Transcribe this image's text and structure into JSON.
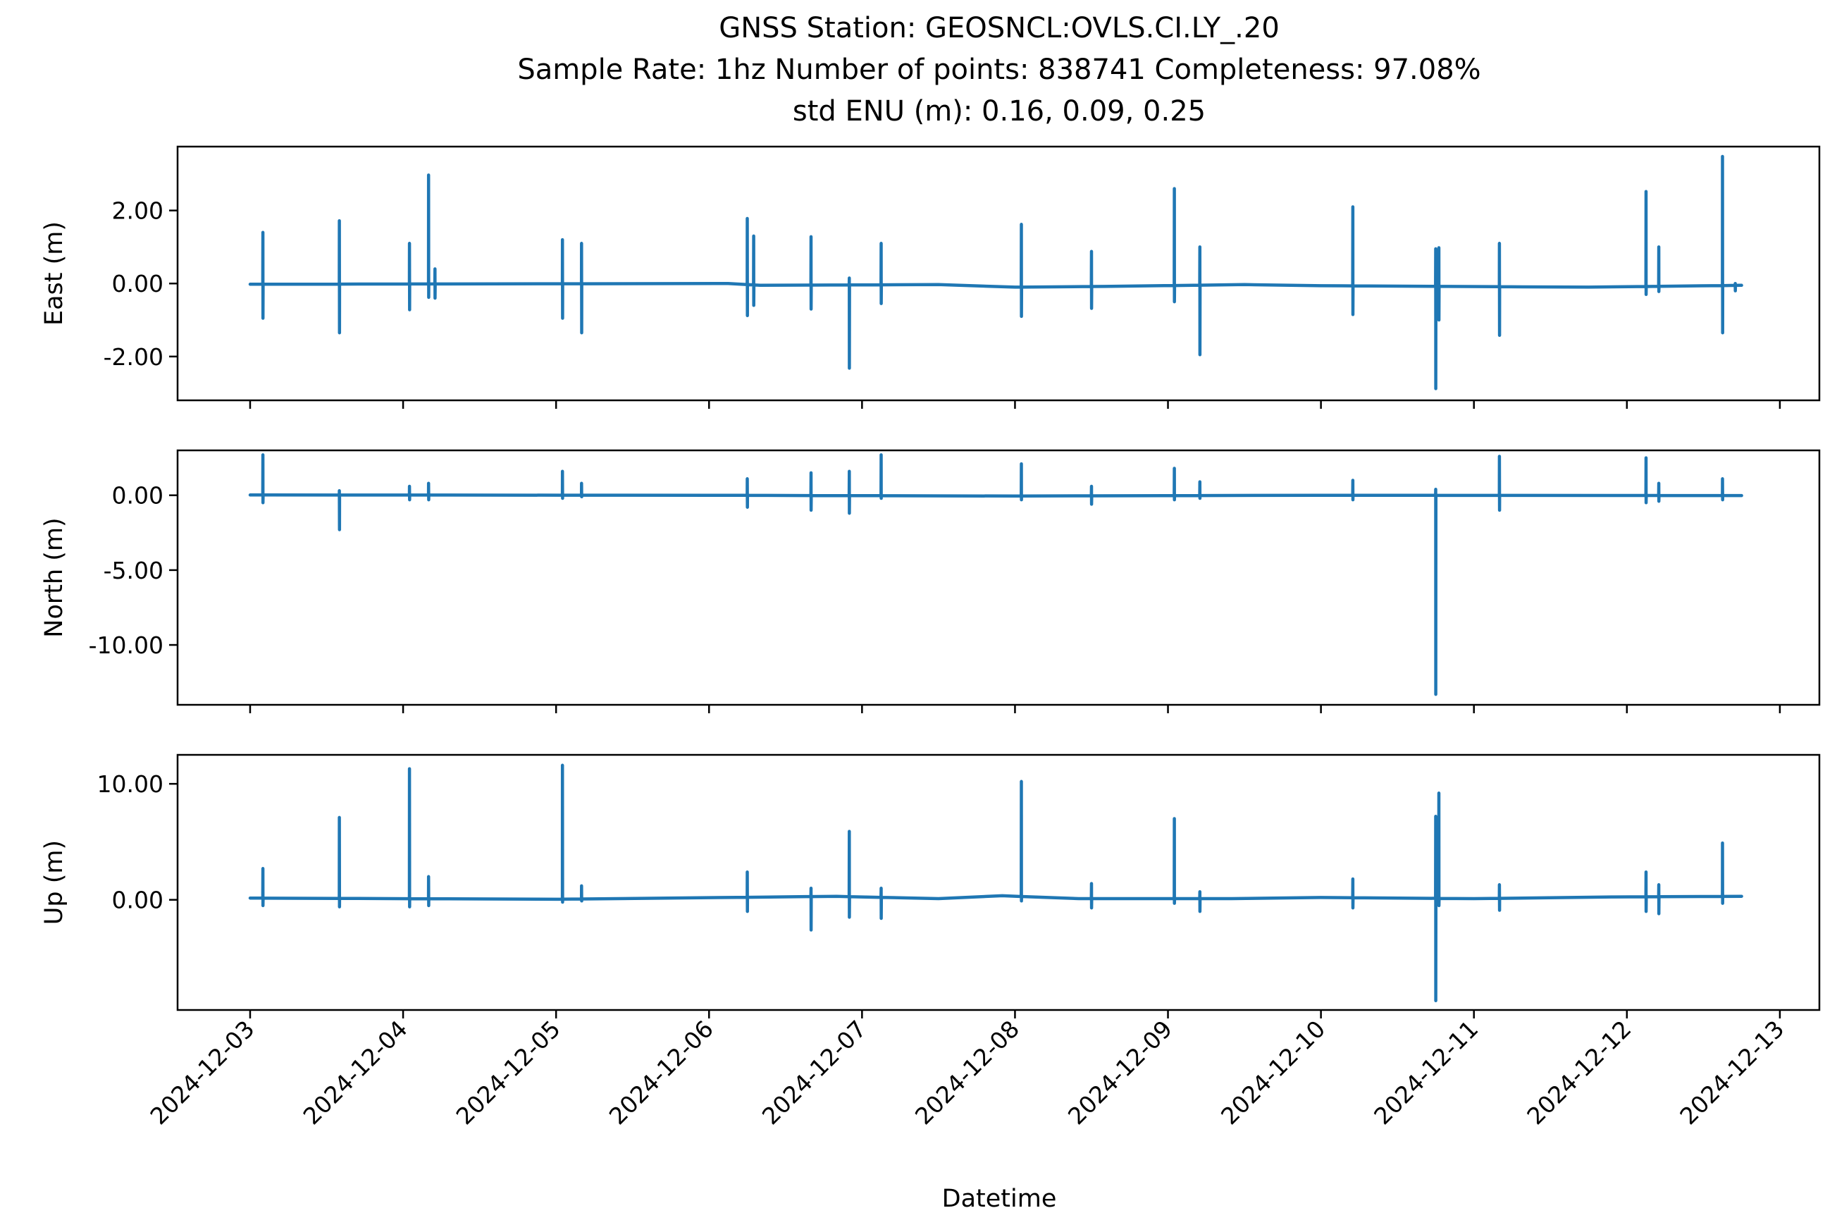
{
  "title": {
    "line1": "GNSS Station: GEOSNCL:OVLS.CI.LY_.20",
    "line2": "Sample Rate: 1hz   Number of points: 838741    Completeness:  97.08%",
    "line3": "std ENU (m):  0.16, 0.09, 0.25"
  },
  "chart_data": {
    "type": "line",
    "series_color": "#1f77b4",
    "xlabel": "Datetime",
    "x_ticks": [
      "2024-12-03",
      "2024-12-04",
      "2024-12-05",
      "2024-12-06",
      "2024-12-07",
      "2024-12-08",
      "2024-12-09",
      "2024-12-10",
      "2024-12-11",
      "2024-12-12",
      "2024-12-13"
    ],
    "xlim": [
      "2024-12-02T12:37",
      "2024-12-13T06:12"
    ],
    "x_data_range": [
      "2024-12-03T00:00",
      "2024-12-12T18:00"
    ],
    "panels": [
      {
        "name": "east",
        "ylabel": "East (m)",
        "ylim": [
          -3.2,
          3.75
        ],
        "yticks": [
          2.0,
          0.0,
          -2.0
        ],
        "yticklabels": [
          "2.00",
          "0.00",
          "-2.00"
        ],
        "baseline": [
          [
            "2024-12-03T00:00",
            -0.02
          ],
          [
            "2024-12-06T03:00",
            0.0
          ],
          [
            "2024-12-06T08:00",
            -0.05
          ],
          [
            "2024-12-07T12:00",
            -0.03
          ],
          [
            "2024-12-08T00:00",
            -0.1
          ],
          [
            "2024-12-08T14:00",
            -0.08
          ],
          [
            "2024-12-09T12:00",
            -0.03
          ],
          [
            "2024-12-10T00:00",
            -0.06
          ],
          [
            "2024-12-10T20:00",
            -0.08
          ],
          [
            "2024-12-11T18:00",
            -0.1
          ],
          [
            "2024-12-12T18:00",
            -0.05
          ]
        ],
        "spikes": [
          [
            "2024-12-03T02:00",
            1.4,
            -0.95
          ],
          [
            "2024-12-03T14:00",
            1.72,
            -1.35
          ],
          [
            "2024-12-04T01:00",
            1.1,
            -0.72
          ],
          [
            "2024-12-04T04:00",
            2.97,
            -0.38
          ],
          [
            "2024-12-04T05:00",
            0.4,
            -0.4
          ],
          [
            "2024-12-05T01:00",
            1.2,
            -0.95
          ],
          [
            "2024-12-05T04:00",
            1.1,
            -1.35
          ],
          [
            "2024-12-06T06:00",
            1.78,
            -0.88
          ],
          [
            "2024-12-06T07:00",
            1.3,
            -0.6
          ],
          [
            "2024-12-06T16:00",
            1.28,
            -0.7
          ],
          [
            "2024-12-06T22:00",
            0.15,
            -2.32
          ],
          [
            "2024-12-07T03:00",
            1.1,
            -0.55
          ],
          [
            "2024-12-08T01:00",
            1.62,
            -0.9
          ],
          [
            "2024-12-08T12:00",
            0.88,
            -0.68
          ],
          [
            "2024-12-09T01:00",
            2.6,
            -0.5
          ],
          [
            "2024-12-09T05:00",
            1.0,
            -1.95
          ],
          [
            "2024-12-10T05:00",
            2.1,
            -0.85
          ],
          [
            "2024-12-10T18:00",
            0.95,
            -2.88
          ],
          [
            "2024-12-10T18:30",
            0.98,
            -1.0
          ],
          [
            "2024-12-11T04:00",
            1.1,
            -1.42
          ],
          [
            "2024-12-12T03:00",
            2.52,
            -0.3
          ],
          [
            "2024-12-12T05:00",
            1.0,
            -0.22
          ],
          [
            "2024-12-12T15:00",
            3.48,
            -1.35
          ],
          [
            "2024-12-12T17:00",
            0.0,
            -0.2
          ]
        ]
      },
      {
        "name": "north",
        "ylabel": "North (m)",
        "ylim": [
          -14.0,
          3.0
        ],
        "yticks": [
          0.0,
          -5.0,
          -10.0
        ],
        "yticklabels": [
          "0.00",
          "-5.00",
          "-10.00"
        ],
        "baseline": [
          [
            "2024-12-03T00:00",
            0.02
          ],
          [
            "2024-12-06T00:00",
            0.0
          ],
          [
            "2024-12-08T00:00",
            -0.05
          ],
          [
            "2024-12-10T00:00",
            0.0
          ],
          [
            "2024-12-12T18:00",
            -0.02
          ]
        ],
        "spikes": [
          [
            "2024-12-03T02:00",
            2.7,
            -0.5
          ],
          [
            "2024-12-03T14:00",
            0.3,
            -2.3
          ],
          [
            "2024-12-04T01:00",
            0.6,
            -0.3
          ],
          [
            "2024-12-04T04:00",
            0.8,
            -0.3
          ],
          [
            "2024-12-05T01:00",
            1.6,
            -0.2
          ],
          [
            "2024-12-05T04:00",
            0.8,
            -0.1
          ],
          [
            "2024-12-06T06:00",
            1.1,
            -0.8
          ],
          [
            "2024-12-06T16:00",
            1.5,
            -1.0
          ],
          [
            "2024-12-06T22:00",
            1.6,
            -1.2
          ],
          [
            "2024-12-07T03:00",
            2.7,
            -0.2
          ],
          [
            "2024-12-08T01:00",
            2.1,
            -0.3
          ],
          [
            "2024-12-08T12:00",
            0.6,
            -0.6
          ],
          [
            "2024-12-09T01:00",
            1.8,
            -0.3
          ],
          [
            "2024-12-09T05:00",
            0.9,
            -0.2
          ],
          [
            "2024-12-10T05:00",
            1.0,
            -0.3
          ],
          [
            "2024-12-10T18:00",
            0.4,
            -13.3
          ],
          [
            "2024-12-11T04:00",
            2.6,
            -1.0
          ],
          [
            "2024-12-12T03:00",
            2.5,
            -0.5
          ],
          [
            "2024-12-12T05:00",
            0.8,
            -0.4
          ],
          [
            "2024-12-12T15:00",
            1.1,
            -0.3
          ]
        ]
      },
      {
        "name": "up",
        "ylabel": "Up (m)",
        "ylim": [
          -9.5,
          12.5
        ],
        "yticks": [
          10.0,
          0.0
        ],
        "yticklabels": [
          "10.00",
          "0.00"
        ],
        "baseline": [
          [
            "2024-12-03T00:00",
            0.15
          ],
          [
            "2024-12-05T00:00",
            0.05
          ],
          [
            "2024-12-06T20:00",
            0.3
          ],
          [
            "2024-12-07T12:00",
            0.1
          ],
          [
            "2024-12-07T22:00",
            0.35
          ],
          [
            "2024-12-08T10:00",
            0.1
          ],
          [
            "2024-12-09T10:00",
            0.1
          ],
          [
            "2024-12-10T00:00",
            0.2
          ],
          [
            "2024-12-11T00:00",
            0.1
          ],
          [
            "2024-12-11T22:00",
            0.25
          ],
          [
            "2024-12-12T18:00",
            0.3
          ]
        ],
        "spikes": [
          [
            "2024-12-03T02:00",
            2.7,
            -0.5
          ],
          [
            "2024-12-03T14:00",
            7.1,
            -0.6
          ],
          [
            "2024-12-04T01:00",
            11.3,
            -0.6
          ],
          [
            "2024-12-04T04:00",
            2.0,
            -0.5
          ],
          [
            "2024-12-05T01:00",
            11.6,
            -0.2
          ],
          [
            "2024-12-05T04:00",
            1.2,
            -0.1
          ],
          [
            "2024-12-06T06:00",
            2.4,
            -1.0
          ],
          [
            "2024-12-06T16:00",
            1.0,
            -2.6
          ],
          [
            "2024-12-06T22:00",
            5.9,
            -1.5
          ],
          [
            "2024-12-07T03:00",
            1.0,
            -1.6
          ],
          [
            "2024-12-08T01:00",
            10.2,
            -0.1
          ],
          [
            "2024-12-08T12:00",
            1.4,
            -0.7
          ],
          [
            "2024-12-09T01:00",
            7.0,
            -0.3
          ],
          [
            "2024-12-09T05:00",
            0.7,
            -1.0
          ],
          [
            "2024-12-10T05:00",
            1.8,
            -0.7
          ],
          [
            "2024-12-10T18:00",
            7.2,
            -8.7
          ],
          [
            "2024-12-10T18:30",
            9.2,
            -0.5
          ],
          [
            "2024-12-11T04:00",
            1.3,
            -0.9
          ],
          [
            "2024-12-12T03:00",
            2.4,
            -1.0
          ],
          [
            "2024-12-12T05:00",
            1.3,
            -1.2
          ],
          [
            "2024-12-12T15:00",
            4.9,
            -0.3
          ]
        ]
      }
    ]
  }
}
